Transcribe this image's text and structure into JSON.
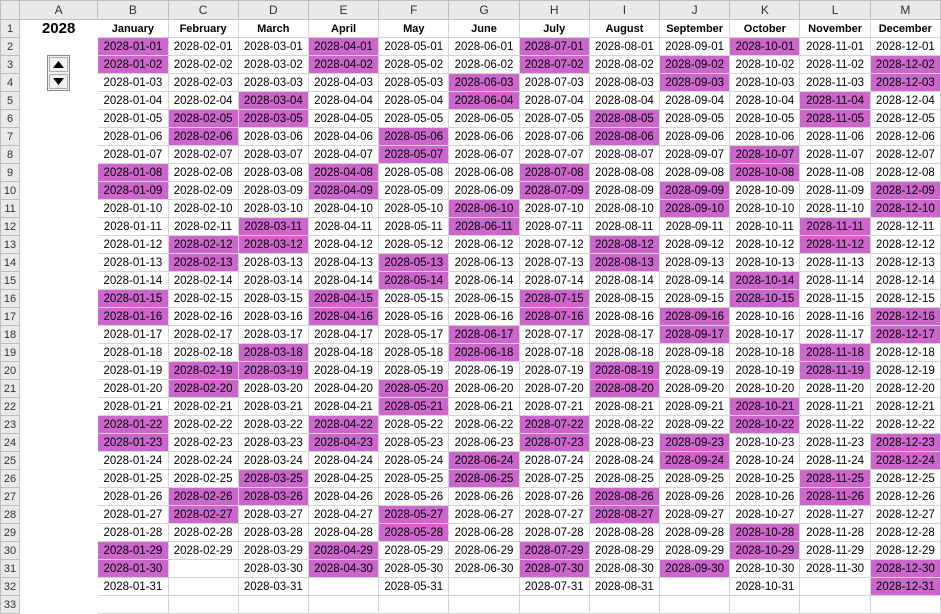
{
  "sheet": {
    "corner": "",
    "columns": [
      "A",
      "B",
      "C",
      "D",
      "E",
      "F",
      "G",
      "H",
      "I",
      "J",
      "K",
      "L",
      "M"
    ],
    "rows": [
      "1",
      "2",
      "3",
      "4",
      "5",
      "6",
      "7",
      "8",
      "9",
      "10",
      "11",
      "12",
      "13",
      "14",
      "15",
      "16",
      "17",
      "18",
      "19",
      "20",
      "21",
      "22",
      "23",
      "24",
      "25",
      "26",
      "27",
      "28",
      "29",
      "30",
      "31",
      "32",
      "33"
    ],
    "year": "2028",
    "months": [
      {
        "name": "January",
        "days": 31,
        "highlighted": [
          1,
          2,
          8,
          9,
          15,
          16,
          22,
          23,
          29,
          30
        ]
      },
      {
        "name": "February",
        "days": 29,
        "highlighted": [
          5,
          6,
          12,
          13,
          19,
          20,
          26,
          27
        ]
      },
      {
        "name": "March",
        "days": 31,
        "highlighted": [
          4,
          5,
          11,
          12,
          18,
          19,
          25,
          26
        ]
      },
      {
        "name": "April",
        "days": 30,
        "highlighted": [
          1,
          2,
          8,
          9,
          15,
          16,
          22,
          23,
          29,
          30
        ]
      },
      {
        "name": "May",
        "days": 31,
        "highlighted": [
          6,
          7,
          13,
          14,
          20,
          21,
          27,
          28
        ]
      },
      {
        "name": "June",
        "days": 30,
        "highlighted": [
          3,
          4,
          10,
          11,
          17,
          18,
          24,
          25
        ]
      },
      {
        "name": "July",
        "days": 31,
        "highlighted": [
          1,
          2,
          8,
          9,
          15,
          16,
          22,
          23,
          29,
          30
        ]
      },
      {
        "name": "August",
        "days": 31,
        "highlighted": [
          5,
          6,
          12,
          13,
          19,
          20,
          26,
          27
        ]
      },
      {
        "name": "September",
        "days": 30,
        "highlighted": [
          2,
          3,
          9,
          10,
          16,
          17,
          23,
          24,
          30
        ]
      },
      {
        "name": "October",
        "days": 31,
        "highlighted": [
          1,
          7,
          8,
          14,
          15,
          21,
          22,
          28,
          29
        ]
      },
      {
        "name": "November",
        "days": 30,
        "highlighted": [
          4,
          5,
          11,
          12,
          18,
          19,
          25,
          26
        ]
      },
      {
        "name": "December",
        "days": 31,
        "highlighted": [
          2,
          3,
          9,
          10,
          16,
          17,
          23,
          24,
          30,
          31
        ]
      }
    ]
  },
  "spinner": {
    "up_icon": "triangle-up-icon",
    "down_icon": "triangle-down-icon"
  },
  "colors": {
    "highlight": "#cc66cc",
    "header": "#e9e9e9"
  }
}
